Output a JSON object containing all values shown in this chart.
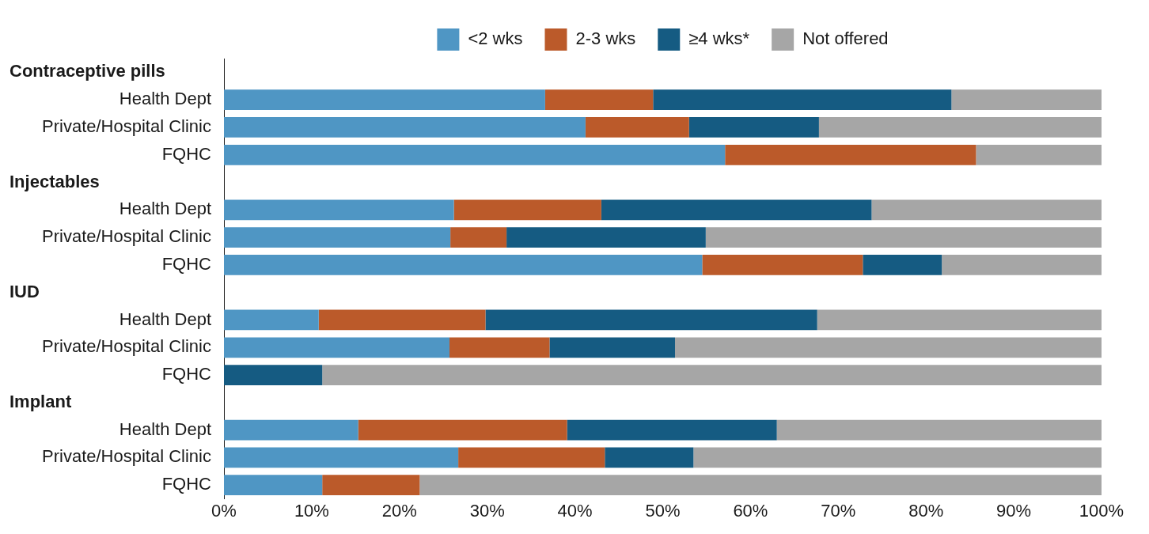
{
  "chart_data": {
    "type": "bar",
    "orientation": "horizontal",
    "stacked": true,
    "legend": "top",
    "grid": false,
    "categories": [
      null,
      "Health Dept",
      "Private/Hospital Clinic",
      "FQHC",
      null,
      "Health Dept",
      "Private/Hospital Clinic",
      "FQHC",
      null,
      "Health Dept",
      "Private/Hospital Clinic",
      "FQHC",
      null,
      "Health Dept",
      "Private/Hospital Clinic",
      "FQHC"
    ],
    "annotations": [
      "Contraceptive pills",
      "Injectables",
      "IUD",
      "Implant"
    ],
    "series": [
      {
        "name": "<2 wks",
        "color": "#4f96c4",
        "values": [
          null,
          36.6,
          41.2,
          57.1,
          null,
          26.2,
          25.8,
          54.5,
          null,
          10.8,
          25.7,
          0,
          null,
          15.3,
          26.7,
          11.2
        ]
      },
      {
        "name": "2-3 wks",
        "color": "#bb5a2a",
        "values": [
          null,
          12.3,
          11.8,
          28.6,
          null,
          16.8,
          6.4,
          18.3,
          null,
          19.0,
          11.4,
          0,
          null,
          23.8,
          16.7,
          11.1
        ]
      },
      {
        "name": "≥4 wks*",
        "color": "#155b82",
        "values": [
          null,
          34.0,
          14.8,
          0,
          null,
          30.8,
          22.7,
          9.0,
          null,
          37.8,
          14.3,
          11.2,
          null,
          23.9,
          10.1,
          0
        ]
      },
      {
        "name": "Not offered",
        "color": "#a6a6a6",
        "values": [
          null,
          17.1,
          32.2,
          14.3,
          null,
          26.2,
          45.1,
          18.2,
          null,
          32.4,
          48.6,
          88.8,
          null,
          37.0,
          46.5,
          77.7
        ]
      }
    ],
    "xlim": [
      0,
      100
    ],
    "xticks": [
      {
        "value": 0,
        "label": "0%"
      },
      {
        "value": 10,
        "label": "10%"
      },
      {
        "value": 20,
        "label": "20%"
      },
      {
        "value": 30,
        "label": "30%"
      },
      {
        "value": 40,
        "label": "40%"
      },
      {
        "value": 50,
        "label": "50%"
      },
      {
        "value": 60,
        "label": "60%"
      },
      {
        "value": 70,
        "label": "70%"
      },
      {
        "value": 80,
        "label": "80%"
      },
      {
        "value": 90,
        "label": "90%"
      },
      {
        "value": 100,
        "label": "100%"
      }
    ]
  }
}
